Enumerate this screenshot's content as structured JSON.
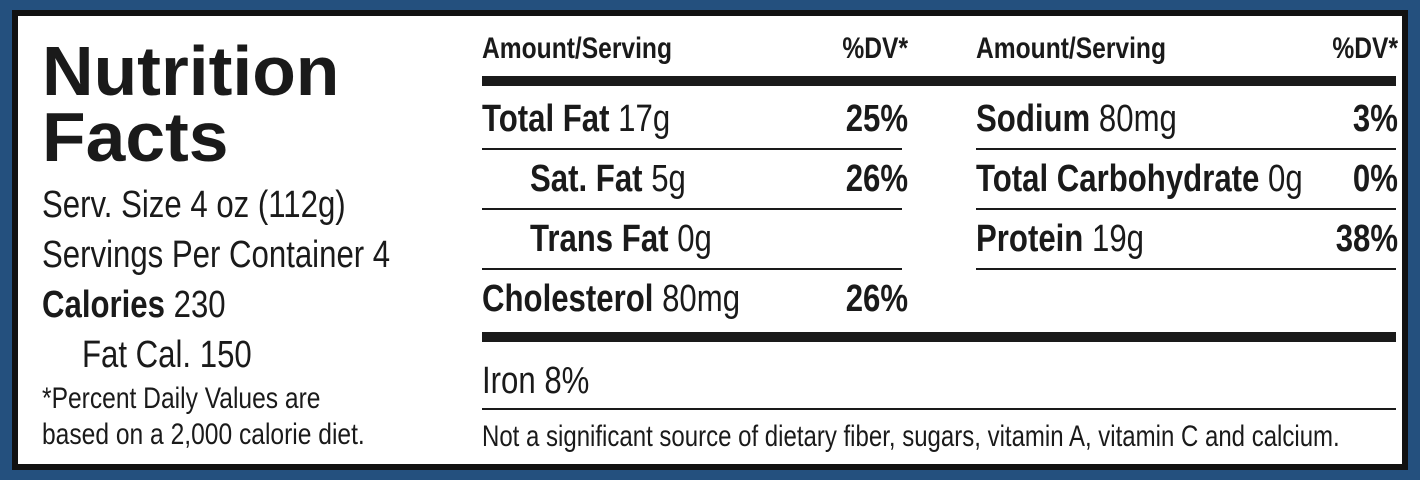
{
  "header": {
    "title_lines": [
      "Nutrition",
      "Facts"
    ],
    "serving_size": "Serv. Size 4 oz (112g)",
    "servings": "Servings Per Container 4",
    "calories": {
      "label": "Calories",
      "value": "230"
    },
    "fat_calories": "Fat Cal. 150",
    "footnote_lines": [
      "*Percent Daily Values are",
      "based on a 2,000 calorie diet."
    ]
  },
  "table": {
    "column_headers": [
      "Amount/Serving",
      "%DV*",
      "Amount/Serving",
      "%DV*"
    ],
    "left_rows": [
      {
        "name": "Total Fat",
        "amount": "17g",
        "dv": "25%"
      },
      {
        "name": "Sat. Fat",
        "amount": "5g",
        "dv": "26%"
      },
      {
        "name": "Trans Fat",
        "amount": "0g"
      },
      {
        "name": "Cholesterol",
        "amount": "80mg",
        "dv": "26%"
      }
    ],
    "right_rows": [
      {
        "name": "Sodium",
        "amount": "80mg",
        "dv": "3%"
      },
      {
        "name": "Total Carbohydrate",
        "amount": "0g",
        "dv": "0%"
      },
      {
        "name": "Protein",
        "amount": "19g",
        "dv": "38%"
      }
    ],
    "iron": "Iron 8%",
    "note": "Not a significant source of dietary fiber, sugars, vitamin A, vitamin C and calcium."
  }
}
